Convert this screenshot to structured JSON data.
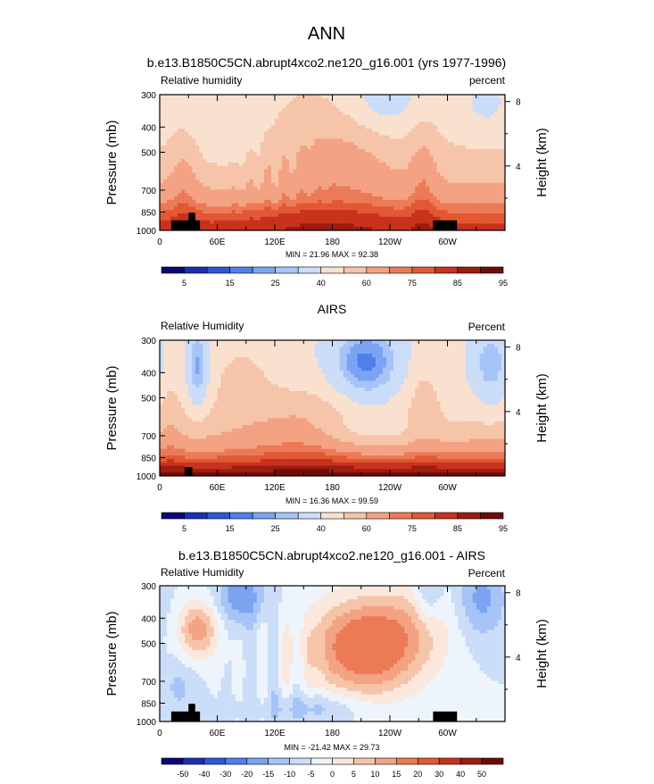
{
  "figure": {
    "title": "ANN"
  },
  "color_scales": {
    "absolute": [
      "#08087a",
      "#1a2fb5",
      "#2f55d8",
      "#4f7fec",
      "#7aa3f3",
      "#a6c4f7",
      "#cbddf8",
      "#f9e0cf",
      "#f6c4a8",
      "#f3a283",
      "#ec7a57",
      "#e25734",
      "#c8321d",
      "#9b1c10",
      "#6e0c06"
    ],
    "difference": [
      "#08087a",
      "#1a2fb5",
      "#2f55d8",
      "#4f7fec",
      "#7aa3f3",
      "#a6c4f7",
      "#cbddf8",
      "#eef4fb",
      "#fbe8dd",
      "#f6c4a8",
      "#f3a283",
      "#ec7a57",
      "#e25734",
      "#c8321d",
      "#9b1c10",
      "#6e0c06"
    ],
    "land_mask": "#000000"
  },
  "chart_data": [
    {
      "type": "heatmap",
      "title": "b.e13.B1850C5CN.abrupt4xco2.ne120_g16.001 (yrs 1977-1996)",
      "left_label": "Relative humidity",
      "right_label": "percent",
      "ylabel": "Pressure (mb)",
      "ylabel_right": "Height (km)",
      "x_ticks": [
        "0",
        "60E",
        "120E",
        "180",
        "120W",
        "60W"
      ],
      "x_tick_lons": [
        0,
        60,
        120,
        180,
        240,
        300
      ],
      "xlim": [
        0,
        360
      ],
      "y_ticks": [
        "300",
        "400",
        "500",
        "700",
        "850",
        "1000"
      ],
      "y_tick_values": [
        300,
        400,
        500,
        700,
        850,
        1000
      ],
      "ylim": [
        300,
        1000
      ],
      "height_ticks": [
        "8",
        "4"
      ],
      "height_tick_values": [
        8,
        4
      ],
      "stats": "MIN =  21.96  MAX =  92.38",
      "colorbar_labels": [
        "5",
        "15",
        "25",
        "40",
        "60",
        "75",
        "85",
        "95"
      ],
      "colorbar_label_positions": [
        1,
        3,
        5,
        7,
        9,
        11,
        13,
        15
      ],
      "colorbar_n": 15,
      "scale": "absolute",
      "levels": [
        0,
        5,
        10,
        15,
        20,
        25,
        30,
        40,
        50,
        60,
        70,
        75,
        80,
        85,
        90,
        95
      ],
      "params": {
        "kind": "model"
      },
      "land": [
        {
          "lon": [
            12,
            42
          ],
          "p": [
            915,
            1000
          ]
        },
        {
          "lon": [
            30,
            37
          ],
          "p": [
            855,
            1000
          ]
        },
        {
          "lon": [
            285,
            310
          ],
          "p": [
            915,
            1000
          ]
        }
      ]
    },
    {
      "type": "heatmap",
      "title": "AIRS",
      "left_label": "Relative Humidity",
      "right_label": "Percent",
      "ylabel": "Pressure (mb)",
      "ylabel_right": "Height (km)",
      "x_ticks": [
        "0",
        "60E",
        "120E",
        "180",
        "120W",
        "60W"
      ],
      "x_tick_lons": [
        0,
        60,
        120,
        180,
        240,
        300
      ],
      "xlim": [
        0,
        360
      ],
      "y_ticks": [
        "300",
        "400",
        "500",
        "700",
        "850",
        "1000"
      ],
      "y_tick_values": [
        300,
        400,
        500,
        700,
        850,
        1000
      ],
      "ylim": [
        300,
        1000
      ],
      "height_ticks": [
        "8",
        "4"
      ],
      "height_tick_values": [
        8,
        4
      ],
      "stats": "MIN =  16.36  MAX =  99.59",
      "colorbar_labels": [
        "5",
        "15",
        "25",
        "40",
        "60",
        "75",
        "85",
        "95"
      ],
      "colorbar_label_positions": [
        1,
        3,
        5,
        7,
        9,
        11,
        13,
        15
      ],
      "colorbar_n": 15,
      "scale": "absolute",
      "levels": [
        0,
        5,
        10,
        15,
        20,
        25,
        30,
        40,
        50,
        60,
        70,
        75,
        80,
        85,
        90,
        95
      ],
      "params": {
        "kind": "obs"
      },
      "land": [
        {
          "lon": [
            26,
            34
          ],
          "p": [
            925,
            1000
          ]
        }
      ]
    },
    {
      "type": "heatmap",
      "title": "b.e13.B1850C5CN.abrupt4xco2.ne120_g16.001 - AIRS",
      "left_label": "Relative Humidity",
      "right_label": "Percent",
      "ylabel": "Pressure (mb)",
      "ylabel_right": "Height (km)",
      "x_ticks": [
        "0",
        "60E",
        "120E",
        "180",
        "120W",
        "60W"
      ],
      "x_tick_lons": [
        0,
        60,
        120,
        180,
        240,
        300
      ],
      "xlim": [
        0,
        360
      ],
      "y_ticks": [
        "300",
        "400",
        "500",
        "700",
        "850",
        "1000"
      ],
      "y_tick_values": [
        300,
        400,
        500,
        700,
        850,
        1000
      ],
      "ylim": [
        300,
        1000
      ],
      "height_ticks": [
        "8",
        "4"
      ],
      "height_tick_values": [
        8,
        4
      ],
      "stats": "MIN = -21.42  MAX =  29.73",
      "colorbar_labels": [
        "-50",
        "-40",
        "-30",
        "-20",
        "-15",
        "-10",
        "-5",
        "0",
        "5",
        "10",
        "15",
        "20",
        "30",
        "40",
        "50"
      ],
      "colorbar_label_positions": [
        1,
        2,
        3,
        4,
        5,
        6,
        7,
        8,
        9,
        10,
        11,
        12,
        13,
        14,
        15
      ],
      "colorbar_n": 16,
      "scale": "difference",
      "levels": [
        -50,
        -40,
        -30,
        -20,
        -15,
        -10,
        -5,
        0,
        5,
        10,
        15,
        20,
        30,
        40,
        50
      ],
      "params": {
        "kind": "diff"
      },
      "land": [
        {
          "lon": [
            12,
            42
          ],
          "p": [
            915,
            1000
          ]
        },
        {
          "lon": [
            30,
            37
          ],
          "p": [
            855,
            1000
          ]
        },
        {
          "lon": [
            285,
            310
          ],
          "p": [
            915,
            1000
          ]
        }
      ]
    }
  ]
}
